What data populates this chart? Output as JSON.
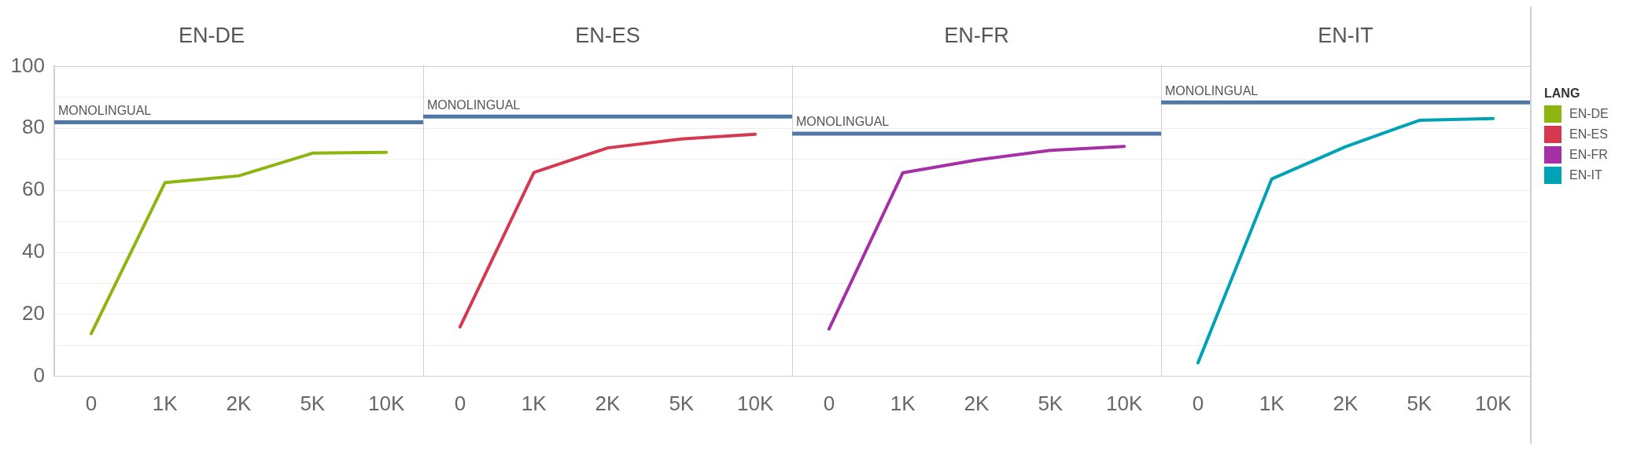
{
  "chart_data": [
    {
      "type": "line",
      "title": "EN-DE",
      "categories": [
        "0",
        "1K",
        "2K",
        "5K",
        "10K"
      ],
      "ylim": [
        0,
        100
      ],
      "yticks": [
        0,
        {
          "value": 10,
          "label": null
        },
        20,
        {
          "value": 30,
          "label": null
        },
        40,
        {
          "value": 50,
          "label": null
        },
        60,
        {
          "value": 70,
          "label": null
        },
        80,
        {
          "value": 90,
          "label": null
        },
        100
      ],
      "grid": "y",
      "marker": "none",
      "line_style": "solid",
      "series": [
        {
          "name": "EN-DE",
          "color": "#8cb60f",
          "values": [
            13.8,
            62.5,
            64.7,
            72.0,
            72.3
          ]
        }
      ],
      "ref_lines": [
        {
          "axis": "y",
          "value": 82,
          "label": "MONOLINGUAL",
          "color": "#4e79a7"
        }
      ]
    },
    {
      "type": "line",
      "title": "EN-ES",
      "categories": [
        "0",
        "1K",
        "2K",
        "5K",
        "10K"
      ],
      "ylim": [
        0,
        100
      ],
      "yticks": [
        0,
        {
          "value": 10,
          "label": null
        },
        20,
        {
          "value": 30,
          "label": null
        },
        40,
        {
          "value": 50,
          "label": null
        },
        60,
        {
          "value": 70,
          "label": null
        },
        80,
        {
          "value": 90,
          "label": null
        },
        100
      ],
      "grid": "y",
      "tick_labels": "x",
      "marker": "none",
      "line_style": "solid",
      "series": [
        {
          "name": "EN-ES",
          "color": "#d6394f",
          "values": [
            16.0,
            65.8,
            73.7,
            76.6,
            78.1
          ]
        }
      ],
      "ref_lines": [
        {
          "axis": "y",
          "value": 83.8,
          "label": "MONOLINGUAL",
          "color": "#4e79a7"
        }
      ]
    },
    {
      "type": "line",
      "title": "EN-FR",
      "categories": [
        "0",
        "1K",
        "2K",
        "5K",
        "10K"
      ],
      "ylim": [
        0,
        100
      ],
      "yticks": [
        0,
        {
          "value": 10,
          "label": null
        },
        20,
        {
          "value": 30,
          "label": null
        },
        40,
        {
          "value": 50,
          "label": null
        },
        60,
        {
          "value": 70,
          "label": null
        },
        80,
        {
          "value": 90,
          "label": null
        },
        100
      ],
      "grid": "y",
      "tick_labels": "x",
      "marker": "none",
      "line_style": "solid",
      "series": [
        {
          "name": "EN-FR",
          "color": "#a62fa6",
          "values": [
            15.3,
            65.7,
            69.8,
            72.9,
            74.2
          ]
        }
      ],
      "ref_lines": [
        {
          "axis": "y",
          "value": 78.3,
          "label": "MONOLINGUAL",
          "color": "#4e79a7"
        }
      ]
    },
    {
      "type": "line",
      "title": "EN-IT",
      "categories": [
        "0",
        "1K",
        "2K",
        "5K",
        "10K"
      ],
      "ylim": [
        0,
        100
      ],
      "yticks": [
        0,
        {
          "value": 10,
          "label": null
        },
        20,
        {
          "value": 30,
          "label": null
        },
        40,
        {
          "value": 50,
          "label": null
        },
        60,
        {
          "value": 70,
          "label": null
        },
        80,
        {
          "value": 90,
          "label": null
        },
        100
      ],
      "grid": "y",
      "tick_labels": "x",
      "marker": "none",
      "line_style": "solid",
      "legend": "right",
      "legend_title": "LANG",
      "series": [
        {
          "name": "EN-IT",
          "color": "#00a3b5",
          "values": [
            4.4,
            63.7,
            74.1,
            82.6,
            83.2
          ]
        }
      ],
      "ref_lines": [
        {
          "axis": "y",
          "value": 88.4,
          "label": "MONOLINGUAL",
          "color": "#4e79a7"
        }
      ]
    }
  ]
}
